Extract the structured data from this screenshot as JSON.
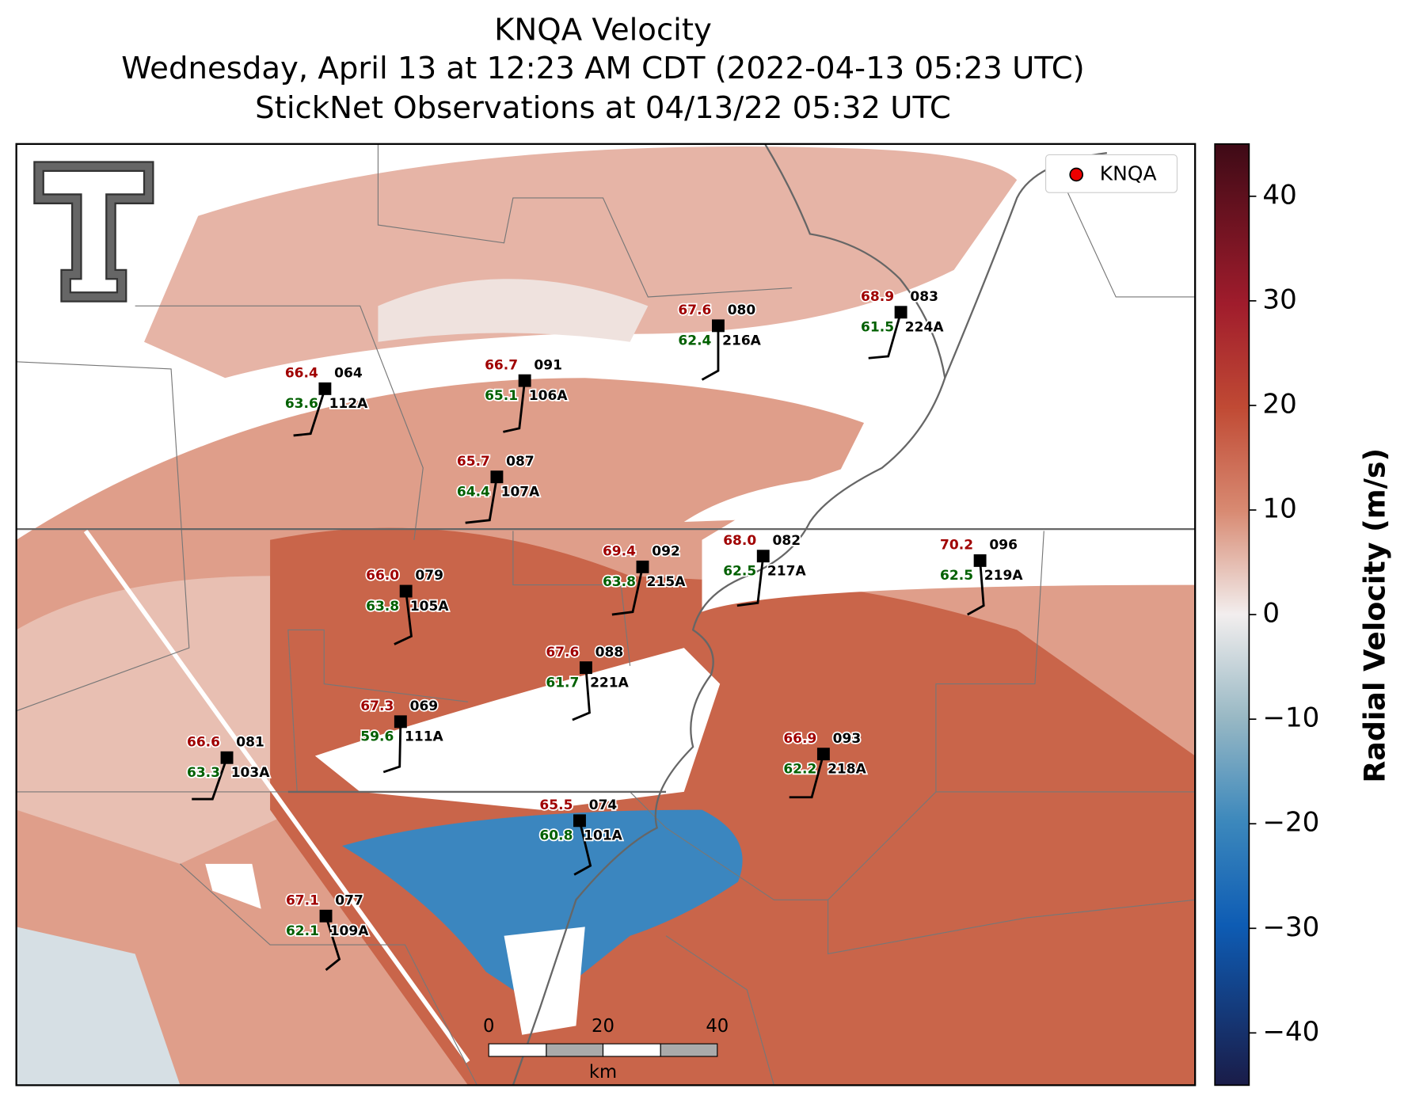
{
  "header": {
    "title": "KNQA Velocity",
    "subtitle": "Wednesday, April 13 at 12:23 AM CDT (2022-04-13 05:23 UTC)",
    "subtitle2": "StickNet Observations at 04/13/22 05:32 UTC"
  },
  "map": {
    "legend": "KNQA",
    "stations": [
      {
        "temp": "66.4",
        "dew": "63.6",
        "num": "064",
        "id": "112A"
      },
      {
        "temp": "66.7",
        "dew": "65.1",
        "num": "091",
        "id": "106A"
      },
      {
        "temp": "67.6",
        "dew": "62.4",
        "num": "080",
        "id": "216A"
      },
      {
        "temp": "68.9",
        "dew": "61.5",
        "num": "083",
        "id": "224A"
      },
      {
        "temp": "65.7",
        "dew": "64.4",
        "num": "087",
        "id": "107A"
      },
      {
        "temp": "66.0",
        "dew": "63.8",
        "num": "079",
        "id": "105A"
      },
      {
        "temp": "69.4",
        "dew": "63.8",
        "num": "092",
        "id": "215A"
      },
      {
        "temp": "68.0",
        "dew": "62.5",
        "num": "082",
        "id": "217A"
      },
      {
        "temp": "70.2",
        "dew": "62.5",
        "num": "096",
        "id": "219A"
      },
      {
        "temp": "67.6",
        "dew": "61.7",
        "num": "088",
        "id": "221A"
      },
      {
        "temp": "67.3",
        "dew": "59.6",
        "num": "069",
        "id": "111A"
      },
      {
        "temp": "66.6",
        "dew": "63.3",
        "num": "081",
        "id": "103A"
      },
      {
        "temp": "66.9",
        "dew": "62.2",
        "num": "093",
        "id": "218A"
      },
      {
        "temp": "65.5",
        "dew": "60.8",
        "num": "074",
        "id": "101A"
      },
      {
        "temp": "67.1",
        "dew": "62.1",
        "num": "077",
        "id": "109A"
      }
    ],
    "scalebar": {
      "labels": [
        "0",
        "20",
        "40"
      ],
      "unit": "km"
    }
  },
  "colorbar": {
    "label": "Radial Velocity (m/s)",
    "lim": [
      -45,
      45
    ],
    "ticks": [
      {
        "value": -40,
        "label": "−40"
      },
      {
        "value": -30,
        "label": "−30"
      },
      {
        "value": -20,
        "label": "−20"
      },
      {
        "value": -10,
        "label": "−10"
      },
      0,
      10,
      20,
      30,
      40
    ]
  }
}
